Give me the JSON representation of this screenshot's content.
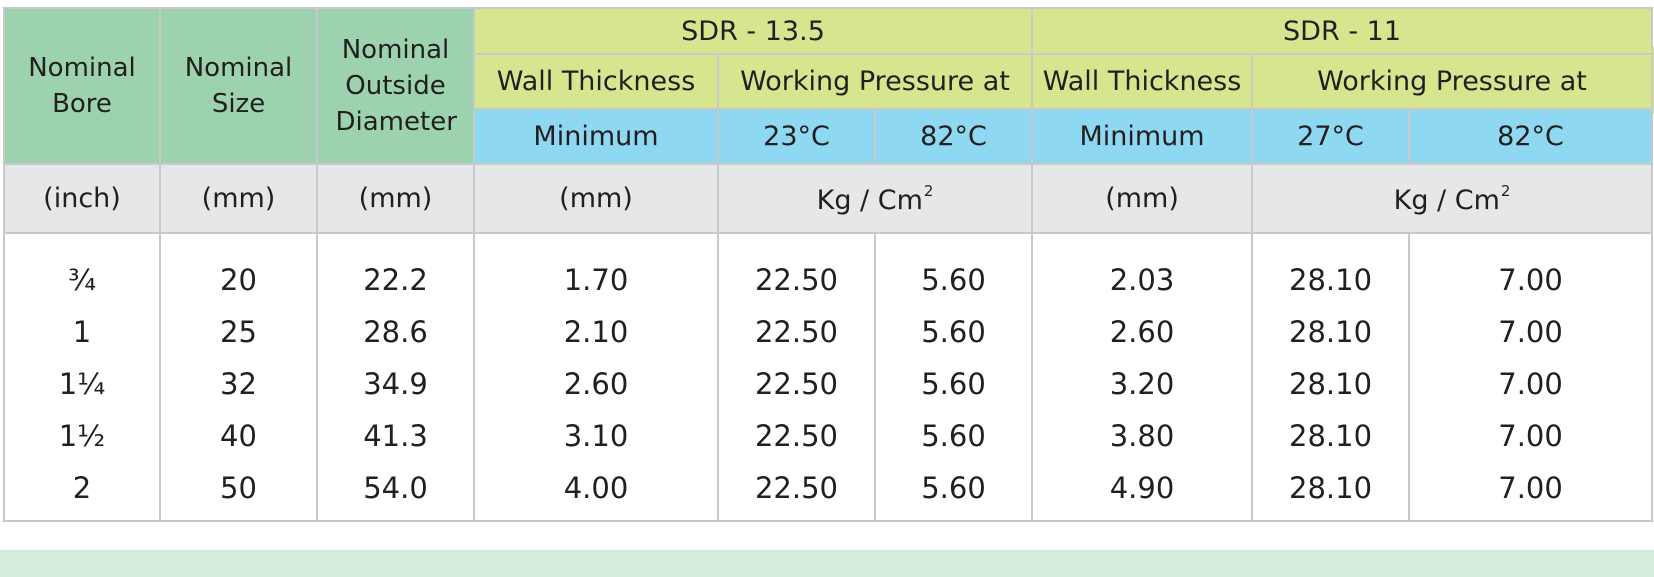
{
  "table": {
    "headers": {
      "nominal_bore": "Nominal Bore",
      "nominal_size": "Nominal Size",
      "nominal_outside_diameter": "Nominal Outside Diameter",
      "sdr_13_5": "SDR - 13.5",
      "sdr_11": "SDR - 11",
      "wall_thickness_1": "Wall Thickness",
      "working_pressure_1": "Working Pressure at",
      "wall_thickness_2": "Wall Thickness",
      "working_pressure_2": "Working Pressure at",
      "minimum_1": "Minimum",
      "temp_23": "23",
      "temp_82a": "82",
      "minimum_2": "Minimum",
      "temp_27": "27",
      "temp_82b": "82",
      "degree_unit": "°C"
    },
    "units": {
      "bore": "(inch)",
      "size": "(mm)",
      "od": "(mm)",
      "wall_1": "(mm)",
      "pressure_1": "Kg / Cm",
      "pressure_1_sup": "2",
      "wall_2": "(mm)",
      "pressure_2": "Kg / Cm",
      "pressure_2_sup": "2"
    },
    "rows": [
      {
        "bore": "¾",
        "size": "20",
        "od": "22.2",
        "wall_135": "1.70",
        "wp_23": "22.50",
        "wp_82a": "5.60",
        "wall_11": "2.03",
        "wp_27": "28.10",
        "wp_82b": "7.00"
      },
      {
        "bore": "1",
        "size": "25",
        "od": "28.6",
        "wall_135": "2.10",
        "wp_23": "22.50",
        "wp_82a": "5.60",
        "wall_11": "2.60",
        "wp_27": "28.10",
        "wp_82b": "7.00"
      },
      {
        "bore": "1¼",
        "size": "32",
        "od": "34.9",
        "wall_135": "2.60",
        "wp_23": "22.50",
        "wp_82a": "5.60",
        "wall_11": "3.20",
        "wp_27": "28.10",
        "wp_82b": "7.00"
      },
      {
        "bore": "1½",
        "size": "40",
        "od": "41.3",
        "wall_135": "3.10",
        "wp_23": "22.50",
        "wp_82a": "5.60",
        "wall_11": "3.80",
        "wp_27": "28.10",
        "wp_82b": "7.00"
      },
      {
        "bore": "2",
        "size": "50",
        "od": "54.0",
        "wall_135": "4.00",
        "wp_23": "22.50",
        "wp_82a": "5.60",
        "wall_11": "4.90",
        "wp_27": "28.10",
        "wp_82b": "7.00"
      }
    ]
  },
  "colors": {
    "header_green": "#9cd3ae",
    "header_lime": "#d6e68e",
    "header_blue": "#8fd8f1",
    "units_grey": "#e6e7e8",
    "footer_mint": "#d3ecdc",
    "border": "#c7c9ca"
  }
}
